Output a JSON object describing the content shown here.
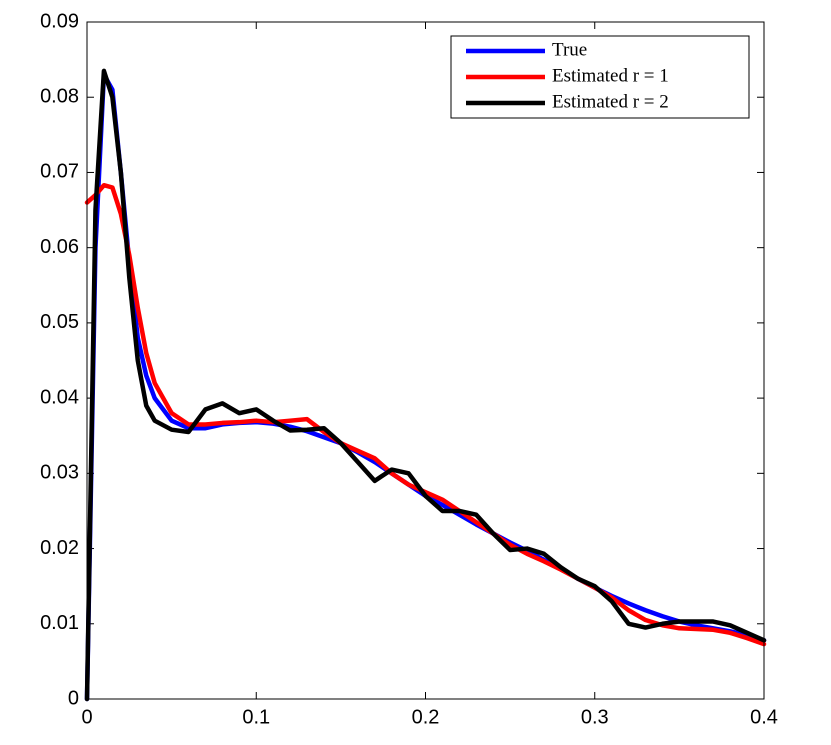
{
  "chart_data": {
    "type": "line",
    "x": [
      0,
      0.005,
      0.01,
      0.015,
      0.02,
      0.025,
      0.03,
      0.035,
      0.04,
      0.05,
      0.06,
      0.07,
      0.08,
      0.09,
      0.1,
      0.11,
      0.12,
      0.13,
      0.14,
      0.15,
      0.16,
      0.17,
      0.18,
      0.19,
      0.2,
      0.21,
      0.22,
      0.23,
      0.24,
      0.25,
      0.26,
      0.27,
      0.28,
      0.29,
      0.3,
      0.31,
      0.32,
      0.33,
      0.34,
      0.35,
      0.36,
      0.37,
      0.38,
      0.39,
      0.4
    ],
    "series": [
      {
        "name": "True",
        "color": "#0000ff",
        "values": [
          0,
          0.06,
          0.083,
          0.081,
          0.07,
          0.058,
          0.048,
          0.043,
          0.04,
          0.037,
          0.036,
          0.036,
          0.0365,
          0.0367,
          0.0368,
          0.0366,
          0.0362,
          0.0356,
          0.0348,
          0.034,
          0.0328,
          0.0315,
          0.03,
          0.0285,
          0.027,
          0.0258,
          0.0245,
          0.0232,
          0.022,
          0.0208,
          0.0197,
          0.0185,
          0.0173,
          0.016,
          0.0148,
          0.0137,
          0.0127,
          0.0118,
          0.011,
          0.0103,
          0.0098,
          0.0094,
          0.009,
          0.0085,
          0.0078
        ]
      },
      {
        "name": "Estimated r = 1",
        "color": "#ff0000",
        "values": [
          0.066,
          0.067,
          0.0683,
          0.068,
          0.0645,
          0.059,
          0.052,
          0.046,
          0.042,
          0.038,
          0.0365,
          0.0365,
          0.0367,
          0.0368,
          0.037,
          0.0368,
          0.037,
          0.0372,
          0.0355,
          0.034,
          0.033,
          0.032,
          0.03,
          0.0285,
          0.0275,
          0.0265,
          0.025,
          0.0235,
          0.022,
          0.0205,
          0.0193,
          0.0183,
          0.0172,
          0.016,
          0.0148,
          0.0135,
          0.0118,
          0.0105,
          0.0098,
          0.0094,
          0.0093,
          0.0092,
          0.0088,
          0.0081,
          0.0073
        ]
      },
      {
        "name": "Estimated r = 2",
        "color": "#000000",
        "values": [
          0,
          0.065,
          0.0835,
          0.08,
          0.07,
          0.056,
          0.045,
          0.039,
          0.037,
          0.0358,
          0.0355,
          0.0385,
          0.0393,
          0.038,
          0.0385,
          0.037,
          0.0357,
          0.0358,
          0.036,
          0.034,
          0.0315,
          0.029,
          0.0305,
          0.03,
          0.027,
          0.025,
          0.025,
          0.0245,
          0.022,
          0.0198,
          0.02,
          0.0193,
          0.0175,
          0.016,
          0.015,
          0.013,
          0.01,
          0.0095,
          0.01,
          0.0103,
          0.0103,
          0.0103,
          0.0098,
          0.0088,
          0.0078
        ]
      }
    ],
    "xlim": [
      0,
      0.4
    ],
    "xticks": [
      0,
      0.1,
      0.2,
      0.3,
      0.4
    ],
    "ylim": [
      0,
      0.09
    ],
    "yticks": [
      0,
      0.01,
      0.02,
      0.03,
      0.04,
      0.05,
      0.06,
      0.07,
      0.08,
      0.09
    ],
    "grid": false,
    "legend": "upper right"
  }
}
